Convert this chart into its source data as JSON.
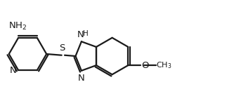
{
  "bg_color": "#ffffff",
  "line_color": "#1a1a1a",
  "line_width": 1.6,
  "font_size": 9.5,
  "figsize": [
    3.33,
    1.54
  ],
  "dpi": 100,
  "xlim": [
    -2.9,
    4.8
  ],
  "ylim": [
    -1.4,
    1.4
  ]
}
